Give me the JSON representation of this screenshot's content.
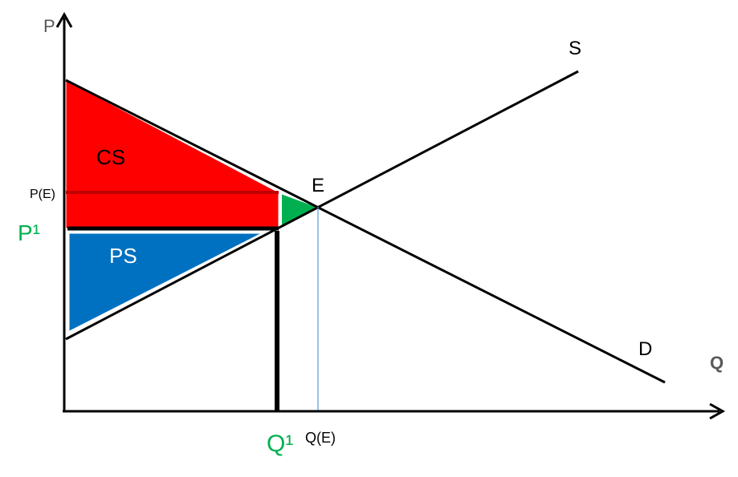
{
  "labels": {
    "y_axis": "P",
    "x_axis": "Q",
    "supply": "S",
    "demand": "D",
    "equilibrium": "E",
    "consumer_surplus": "CS",
    "producer_surplus": "PS",
    "equilibrium_price": "P(E)",
    "equilibrium_quantity": "Q(E)",
    "price_one": "P¹",
    "quantity_one": "Q¹"
  },
  "colors": {
    "consumer_surplus": "#ff0000",
    "producer_surplus": "#0070c0",
    "deadweight_loss": "#00b050",
    "highlight_labels": "#00b050",
    "equilibrium_guide": "#5b9bd5",
    "price_line_dark_red": "#c00000",
    "axis": "#000000"
  }
}
